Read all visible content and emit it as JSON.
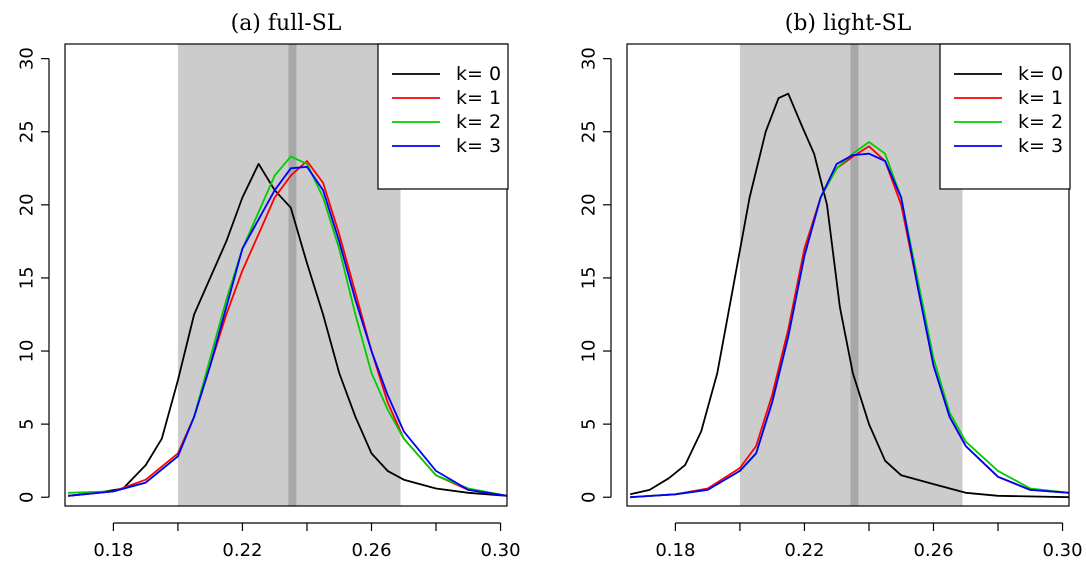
{
  "chart_data": [
    {
      "type": "line",
      "title": "(a) full-SL",
      "xlim": [
        0.165,
        0.302
      ],
      "ylim": [
        -0.6,
        31
      ],
      "x_ticks": [
        0.18,
        0.2,
        0.22,
        0.24,
        0.26,
        0.28,
        0.3
      ],
      "x_tick_labels": [
        "0.18",
        "",
        "0.22",
        "",
        "0.26",
        "",
        "0.30"
      ],
      "y_ticks": [
        0,
        5,
        10,
        15,
        20,
        25,
        30
      ],
      "y_tick_labels": [
        "0",
        "5",
        "10",
        "15",
        "20",
        "25",
        "30"
      ],
      "shaded_band": [
        0.2,
        0.269
      ],
      "vertical_line": 0.2355,
      "legend": {
        "position": "top-right",
        "entries": [
          "k= 0",
          "k= 1",
          "k= 2",
          "k= 3"
        ]
      },
      "series": [
        {
          "name": "k= 0",
          "color": "#000000",
          "x": [
            0.166,
            0.175,
            0.183,
            0.19,
            0.195,
            0.2,
            0.205,
            0.21,
            0.215,
            0.22,
            0.225,
            0.23,
            0.235,
            0.24,
            0.245,
            0.25,
            0.255,
            0.26,
            0.265,
            0.27,
            0.28,
            0.29,
            0.302
          ],
          "y": [
            0.1,
            0.3,
            0.6,
            2.2,
            4.0,
            8.0,
            12.5,
            15.0,
            17.5,
            20.5,
            22.8,
            21.0,
            19.8,
            16.0,
            12.5,
            8.5,
            5.5,
            3.0,
            1.8,
            1.2,
            0.6,
            0.3,
            0.1
          ]
        },
        {
          "name": "k= 1",
          "color": "#ff0000",
          "x": [
            0.166,
            0.18,
            0.19,
            0.2,
            0.205,
            0.21,
            0.215,
            0.22,
            0.225,
            0.23,
            0.235,
            0.24,
            0.245,
            0.25,
            0.255,
            0.26,
            0.265,
            0.27,
            0.28,
            0.29,
            0.302
          ],
          "y": [
            0.1,
            0.4,
            1.2,
            3.0,
            5.5,
            9.0,
            12.5,
            15.5,
            18.0,
            20.5,
            22.0,
            23.0,
            21.5,
            18.0,
            14.0,
            10.0,
            6.5,
            4.0,
            1.5,
            0.5,
            0.1
          ]
        },
        {
          "name": "k= 2",
          "color": "#00cd00",
          "x": [
            0.166,
            0.18,
            0.19,
            0.2,
            0.205,
            0.21,
            0.215,
            0.22,
            0.225,
            0.23,
            0.235,
            0.24,
            0.245,
            0.25,
            0.255,
            0.26,
            0.265,
            0.27,
            0.28,
            0.29,
            0.302
          ],
          "y": [
            0.3,
            0.4,
            1.0,
            2.8,
            5.5,
            9.5,
            13.5,
            17.0,
            19.5,
            22.0,
            23.3,
            22.8,
            20.5,
            17.0,
            12.5,
            8.5,
            6.0,
            4.0,
            1.5,
            0.6,
            0.1
          ]
        },
        {
          "name": "k= 3",
          "color": "#0000ff",
          "x": [
            0.166,
            0.18,
            0.19,
            0.2,
            0.205,
            0.21,
            0.215,
            0.22,
            0.225,
            0.23,
            0.235,
            0.24,
            0.245,
            0.25,
            0.255,
            0.26,
            0.265,
            0.27,
            0.28,
            0.29,
            0.302
          ],
          "y": [
            0.1,
            0.4,
            1.0,
            2.8,
            5.5,
            9.0,
            13.0,
            17.0,
            19.0,
            21.0,
            22.5,
            22.6,
            21.0,
            17.5,
            13.5,
            10.0,
            7.0,
            4.5,
            1.8,
            0.5,
            0.1
          ]
        }
      ]
    },
    {
      "type": "line",
      "title": "(b) light-SL",
      "xlim": [
        0.165,
        0.302
      ],
      "ylim": [
        -0.6,
        31
      ],
      "x_ticks": [
        0.18,
        0.2,
        0.22,
        0.24,
        0.26,
        0.28,
        0.3
      ],
      "x_tick_labels": [
        "0.18",
        "",
        "0.22",
        "",
        "0.26",
        "",
        "0.30"
      ],
      "y_ticks": [
        0,
        5,
        10,
        15,
        20,
        25,
        30
      ],
      "y_tick_labels": [
        "0",
        "5",
        "10",
        "15",
        "20",
        "25",
        "30"
      ],
      "shaded_band": [
        0.2,
        0.269
      ],
      "vertical_line": 0.2355,
      "legend": {
        "position": "top-right",
        "entries": [
          "k= 0",
          "k= 1",
          "k= 2",
          "k= 3"
        ]
      },
      "series": [
        {
          "name": "k= 0",
          "color": "#000000",
          "x": [
            0.166,
            0.172,
            0.178,
            0.183,
            0.188,
            0.193,
            0.198,
            0.203,
            0.208,
            0.212,
            0.215,
            0.219,
            0.223,
            0.227,
            0.231,
            0.235,
            0.24,
            0.245,
            0.25,
            0.26,
            0.27,
            0.28,
            0.302
          ],
          "y": [
            0.2,
            0.5,
            1.3,
            2.2,
            4.5,
            8.5,
            14.5,
            20.5,
            25.0,
            27.3,
            27.6,
            25.5,
            23.5,
            20.0,
            13.0,
            8.5,
            5.0,
            2.5,
            1.5,
            0.9,
            0.3,
            0.1,
            0.0
          ]
        },
        {
          "name": "k= 1",
          "color": "#ff0000",
          "x": [
            0.166,
            0.18,
            0.19,
            0.2,
            0.205,
            0.21,
            0.215,
            0.22,
            0.225,
            0.23,
            0.235,
            0.24,
            0.245,
            0.25,
            0.255,
            0.26,
            0.265,
            0.27,
            0.28,
            0.29,
            0.302
          ],
          "y": [
            0.0,
            0.2,
            0.6,
            2.0,
            3.5,
            7.0,
            11.5,
            17.0,
            20.5,
            22.5,
            23.3,
            24.0,
            23.0,
            20.0,
            14.5,
            9.0,
            5.5,
            3.5,
            1.4,
            0.5,
            0.3
          ]
        },
        {
          "name": "k= 2",
          "color": "#00cd00",
          "x": [
            0.166,
            0.18,
            0.19,
            0.2,
            0.205,
            0.21,
            0.215,
            0.22,
            0.225,
            0.23,
            0.235,
            0.24,
            0.245,
            0.25,
            0.255,
            0.26,
            0.265,
            0.27,
            0.28,
            0.29,
            0.302
          ],
          "y": [
            0.0,
            0.2,
            0.5,
            1.8,
            3.0,
            6.5,
            11.0,
            16.5,
            20.5,
            22.5,
            23.5,
            24.3,
            23.5,
            20.5,
            15.0,
            9.5,
            5.8,
            3.8,
            1.8,
            0.6,
            0.3
          ]
        },
        {
          "name": "k= 3",
          "color": "#0000ff",
          "x": [
            0.166,
            0.18,
            0.19,
            0.2,
            0.205,
            0.21,
            0.215,
            0.22,
            0.225,
            0.23,
            0.235,
            0.24,
            0.245,
            0.25,
            0.255,
            0.26,
            0.265,
            0.27,
            0.28,
            0.29,
            0.302
          ],
          "y": [
            0.0,
            0.2,
            0.5,
            1.8,
            3.0,
            6.5,
            11.0,
            16.5,
            20.5,
            22.8,
            23.4,
            23.5,
            23.0,
            20.5,
            14.5,
            9.0,
            5.5,
            3.5,
            1.4,
            0.5,
            0.3
          ]
        }
      ]
    }
  ]
}
